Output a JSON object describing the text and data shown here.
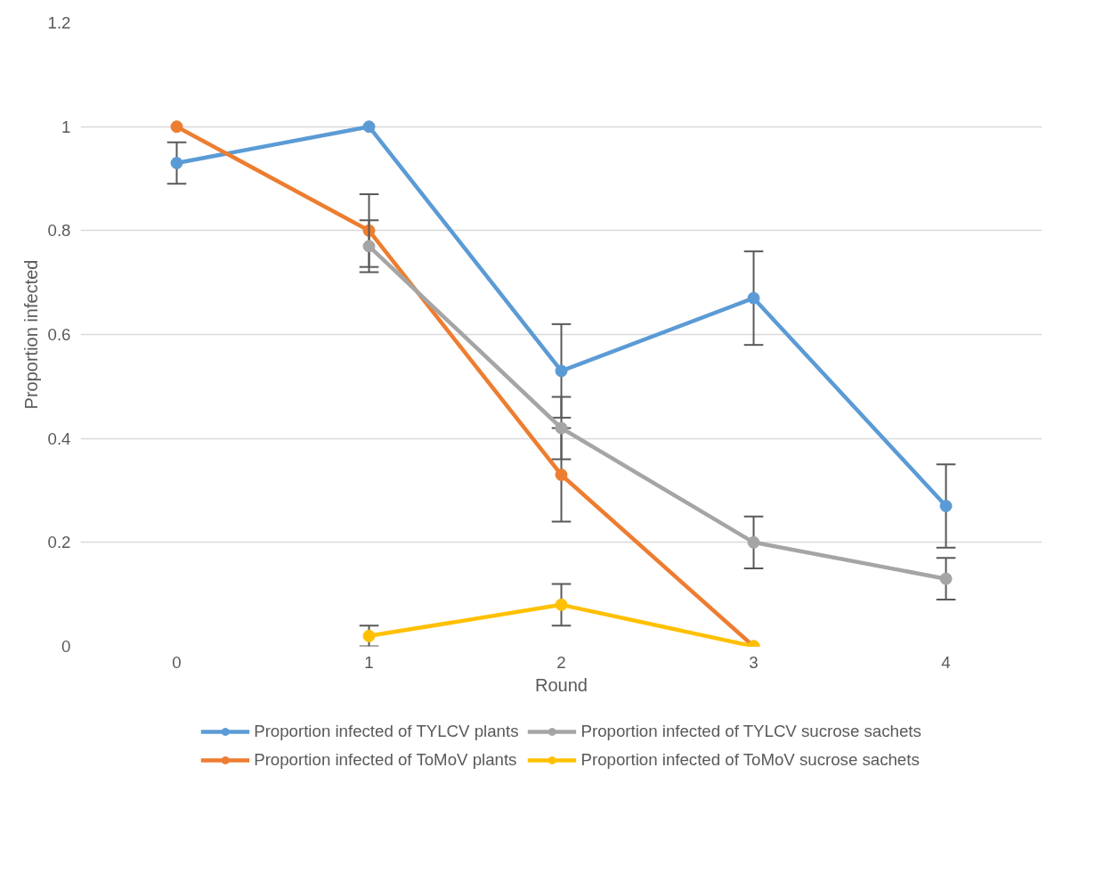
{
  "chart_data": {
    "type": "line",
    "xlabel": "Round",
    "ylabel": "Proportion infected",
    "x": [
      0,
      1,
      2,
      3,
      4
    ],
    "xlim": [
      -0.5,
      4.5
    ],
    "xticks": [
      0,
      1,
      2,
      3,
      4
    ],
    "ylim": [
      0,
      1.2
    ],
    "yticks": [
      0,
      0.2,
      0.4,
      0.6,
      0.8,
      1,
      1.2
    ],
    "series": [
      {
        "name": "Proportion infected of TYLCV plants",
        "color": "#5b9bd5",
        "values": [
          0.93,
          1.0,
          0.53,
          0.67,
          0.27
        ],
        "errors": [
          0.04,
          null,
          0.09,
          0.09,
          0.08
        ]
      },
      {
        "name": "Proportion infected of ToMoV plants",
        "color": "#ed7d31",
        "values": [
          1.0,
          0.8,
          0.33,
          0.0,
          null
        ],
        "errors": [
          null,
          0.07,
          0.09,
          null,
          null
        ]
      },
      {
        "name": "Proportion infected of TYLCV sucrose sachets",
        "color": "#a5a5a5",
        "values": [
          null,
          0.77,
          0.42,
          0.2,
          0.13
        ],
        "errors": [
          null,
          0.05,
          0.06,
          0.05,
          0.04
        ]
      },
      {
        "name": "Proportion infected of ToMoV sucrose sachets",
        "color": "#ffc000",
        "values": [
          null,
          0.02,
          0.08,
          0.0,
          null
        ],
        "errors": [
          null,
          0.02,
          0.04,
          null,
          null
        ]
      }
    ],
    "grid": "y",
    "legend": "bottom",
    "marker": "circle",
    "line_style": "solid"
  }
}
